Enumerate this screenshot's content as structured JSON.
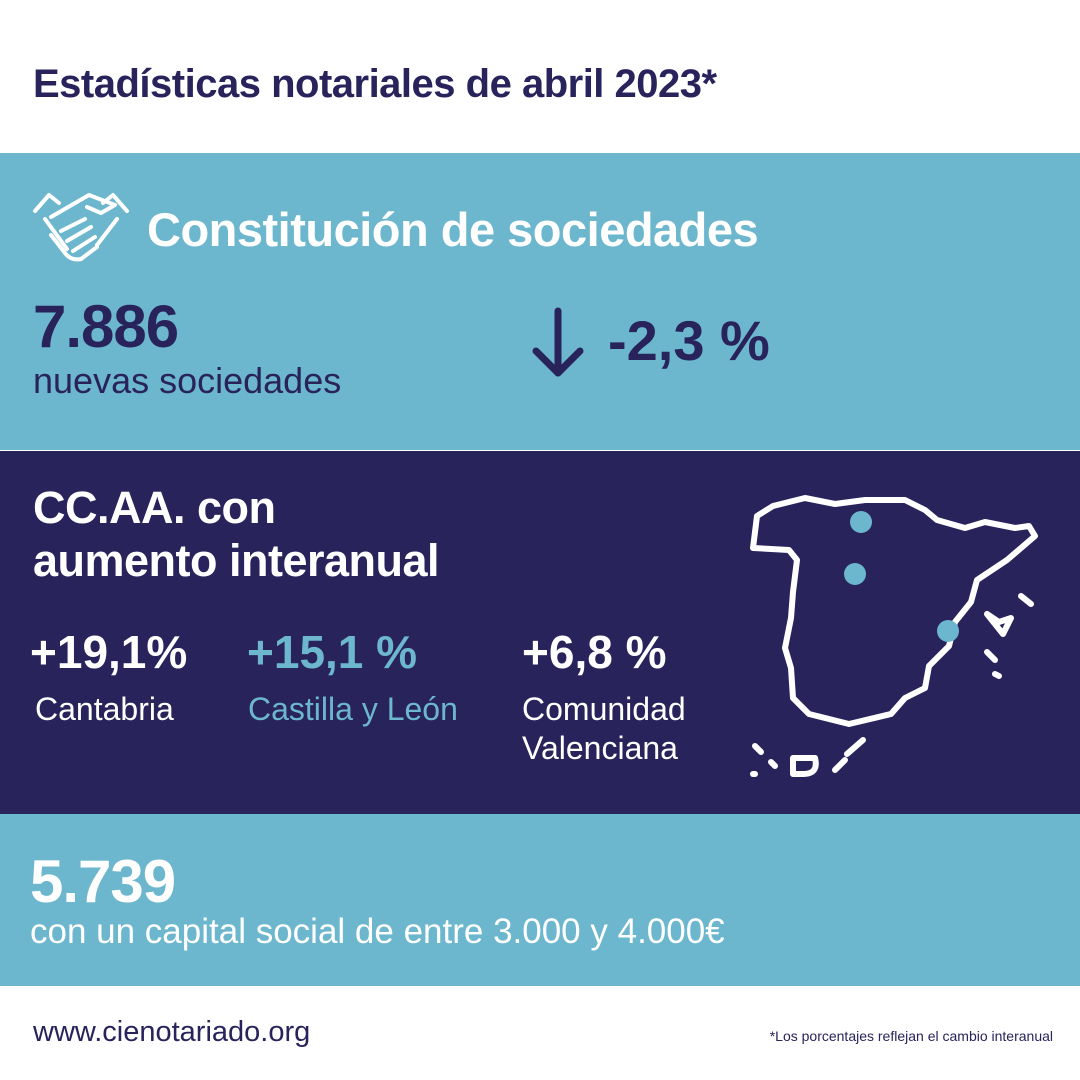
{
  "header": {
    "title": "Estadísticas notariales de abril 2023*"
  },
  "constitucion": {
    "icon": "handshake-icon",
    "title": "Constitución de sociedades",
    "count": "7.886",
    "count_label": "nuevas sociedades",
    "trend_icon": "arrow-down-icon",
    "change": "-2,3 %"
  },
  "ccaa": {
    "title_line1": "CC.AA. con",
    "title_line2": "aumento interanual",
    "map_icon": "spain-map-icon",
    "stats": [
      {
        "value": "+19,1%",
        "label": "Cantabria"
      },
      {
        "value": "+15,1 %",
        "label": "Castilla y León"
      },
      {
        "value": "+6,8 %",
        "label_line1": "Comunidad",
        "label_line2": "Valenciana"
      }
    ]
  },
  "capital": {
    "count": "5.739",
    "label": "con un capital social de entre 3.000 y 4.000€"
  },
  "footer": {
    "url": "www.cienotariado.org",
    "note": "*Los porcentajes reflejan el cambio interanual"
  },
  "colors": {
    "navy": "#29235c",
    "light_blue": "#6cb7ce",
    "white": "#ffffff"
  }
}
